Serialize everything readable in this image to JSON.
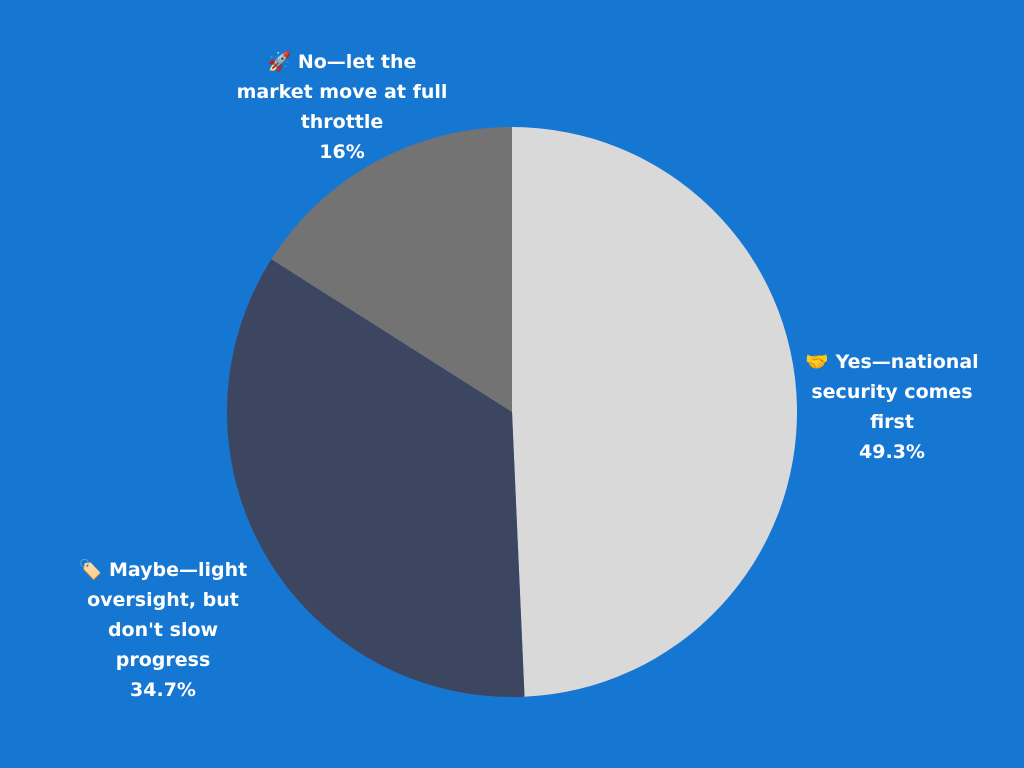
{
  "chart_data": {
    "type": "pie",
    "categories": [
      "🤝 Yes—national security comes first",
      "🏷️ Maybe—light oversight, but don't slow progress",
      "🚀 No—let the market move at full throttle"
    ],
    "values": [
      49.3,
      34.7,
      16
    ],
    "value_labels": [
      "49.3%",
      "34.7%",
      "16%"
    ],
    "colors": [
      "#d9d9d9",
      "#3d4661",
      "#737373"
    ]
  }
}
